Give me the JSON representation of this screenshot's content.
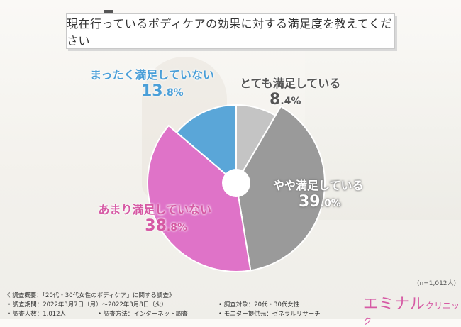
{
  "title": "現在行っているボディケアの効果に対する満足度を教えてください",
  "sample_size": "(n=1,012人)",
  "chart_data": {
    "type": "pie",
    "style": "donut",
    "categories": [
      "とても満足している",
      "やや満足している",
      "あまり満足していない",
      "まったく満足していない"
    ],
    "values": [
      8.4,
      39.0,
      38.8,
      13.8
    ],
    "unit": "%",
    "colors": [
      "#c4c4c4",
      "#9a9a9a",
      "#df73c8",
      "#5aa6d8"
    ],
    "label_colors": [
      "#555555",
      "#555555",
      "#d65aa4",
      "#4a9fd8"
    ]
  },
  "survey": {
    "heading": "《 調査概要：「20代・30代女性のボディケア」に関する調査》",
    "period": "• 調査期間：2022年3月7日（月）〜2022年3月8日（火）",
    "respondents": "• 調査人数：1,012人",
    "method": "• 調査方法：インターネット調査",
    "target": "• 調査対象：20代・30代女性",
    "provider": "• モニター提供元：ゼネラルリサーチ"
  },
  "logo": {
    "main": "エミナル",
    "sub": "クリニック"
  }
}
